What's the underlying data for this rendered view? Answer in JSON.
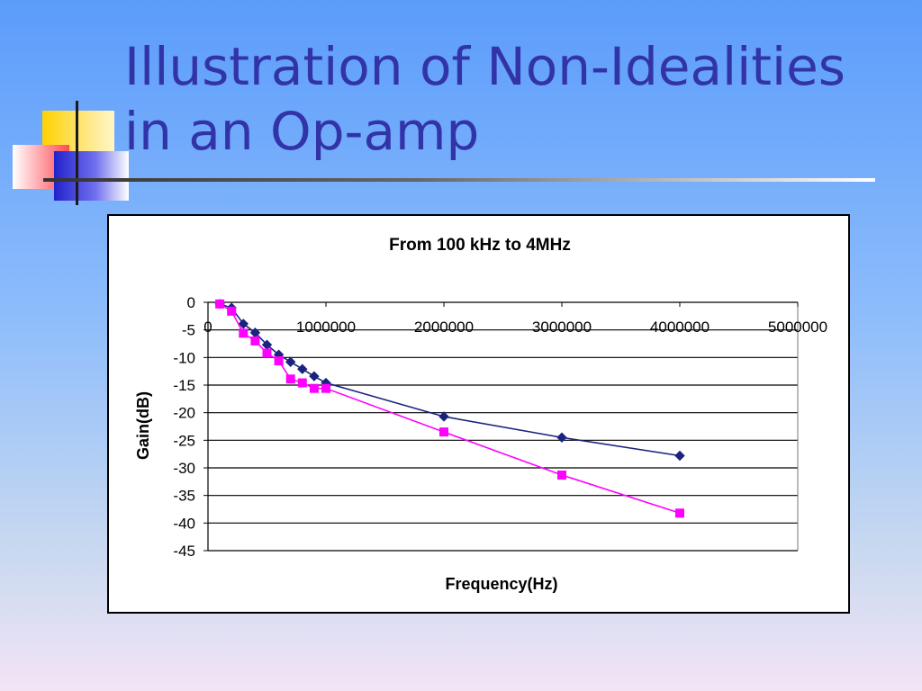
{
  "slide": {
    "title": "Illustration of Non-Idealities in an Op-amp"
  },
  "colors": {
    "series1": "#1a237e",
    "series2": "#ff00ff",
    "title_text": "#3333a8"
  },
  "chart_data": {
    "type": "line",
    "title": "From 100 kHz to 4MHz",
    "xlabel": "Frequency(Hz)",
    "ylabel": "Gain(dB)",
    "xlim": [
      0,
      5000000
    ],
    "ylim": [
      -45,
      0
    ],
    "x_ticks": [
      "0",
      "1000000",
      "2000000",
      "3000000",
      "4000000",
      "5000000"
    ],
    "y_ticks": [
      "0",
      "-5",
      "-10",
      "-15",
      "-20",
      "-25",
      "-30",
      "-35",
      "-40",
      "-45"
    ],
    "grid": "horizontal",
    "x_axis_position": "top",
    "legend": "none",
    "series": [
      {
        "marker": "diamond",
        "color": "#1a237e",
        "x": [
          100000,
          200000,
          300000,
          400000,
          500000,
          600000,
          700000,
          800000,
          900000,
          1000000,
          2000000,
          3000000,
          4000000
        ],
        "y": [
          -0.3,
          -1.0,
          -3.9,
          -5.5,
          -7.7,
          -9.5,
          -10.8,
          -12.1,
          -13.4,
          -14.6,
          -20.7,
          -24.5,
          -27.8
        ]
      },
      {
        "marker": "square",
        "color": "#ff00ff",
        "x": [
          100000,
          200000,
          300000,
          400000,
          500000,
          600000,
          700000,
          800000,
          900000,
          1000000,
          2000000,
          3000000,
          4000000
        ],
        "y": [
          -0.3,
          -1.6,
          -5.6,
          -7.0,
          -9.2,
          -10.6,
          -13.9,
          -14.6,
          -15.6,
          -15.6,
          -23.5,
          -31.3,
          -38.2
        ]
      }
    ]
  }
}
